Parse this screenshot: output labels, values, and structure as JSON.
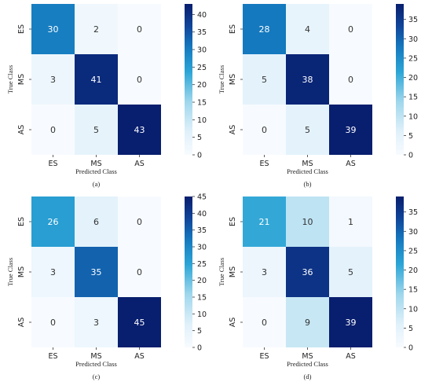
{
  "chart_data": [
    {
      "type": "heatmap",
      "caption": "(a)",
      "xlabel": "Predicted Class",
      "ylabel": "True Class",
      "x_categories": [
        "ES",
        "MS",
        "AS"
      ],
      "y_categories": [
        "ES",
        "MS",
        "AS"
      ],
      "values": [
        [
          30,
          2,
          0
        ],
        [
          3,
          41,
          0
        ],
        [
          0,
          5,
          43
        ]
      ],
      "colorbar": {
        "min": 0,
        "max": 43,
        "ticks": [
          0,
          5,
          10,
          15,
          20,
          25,
          30,
          35,
          40
        ]
      },
      "colormap": "Blues"
    },
    {
      "type": "heatmap",
      "caption": "(b)",
      "xlabel": "Predicted Class",
      "ylabel": "True Class",
      "x_categories": [
        "ES",
        "MS",
        "AS"
      ],
      "y_categories": [
        "ES",
        "MS",
        "AS"
      ],
      "values": [
        [
          28,
          4,
          0
        ],
        [
          5,
          38,
          0
        ],
        [
          0,
          5,
          39
        ]
      ],
      "colorbar": {
        "min": 0,
        "max": 39,
        "ticks": [
          0,
          5,
          10,
          15,
          20,
          25,
          30,
          35
        ]
      },
      "colormap": "Blues"
    },
    {
      "type": "heatmap",
      "caption": "(c)",
      "xlabel": "Predicted Class",
      "ylabel": "True Class",
      "x_categories": [
        "ES",
        "MS",
        "AS"
      ],
      "y_categories": [
        "ES",
        "MS",
        "AS"
      ],
      "values": [
        [
          26,
          6,
          0
        ],
        [
          3,
          35,
          0
        ],
        [
          0,
          3,
          45
        ]
      ],
      "colorbar": {
        "min": 0,
        "max": 45,
        "ticks": [
          0,
          5,
          10,
          15,
          20,
          25,
          30,
          35,
          40,
          45
        ]
      },
      "colormap": "Blues"
    },
    {
      "type": "heatmap",
      "caption": "(d)",
      "xlabel": "Predicted Class",
      "ylabel": "True Class",
      "x_categories": [
        "ES",
        "MS",
        "AS"
      ],
      "y_categories": [
        "ES",
        "MS",
        "AS"
      ],
      "values": [
        [
          21,
          10,
          1
        ],
        [
          3,
          36,
          5
        ],
        [
          0,
          9,
          39
        ]
      ],
      "colorbar": {
        "min": 0,
        "max": 39,
        "ticks": [
          0,
          5,
          10,
          15,
          20,
          25,
          30,
          35
        ]
      },
      "colormap": "Blues"
    }
  ]
}
